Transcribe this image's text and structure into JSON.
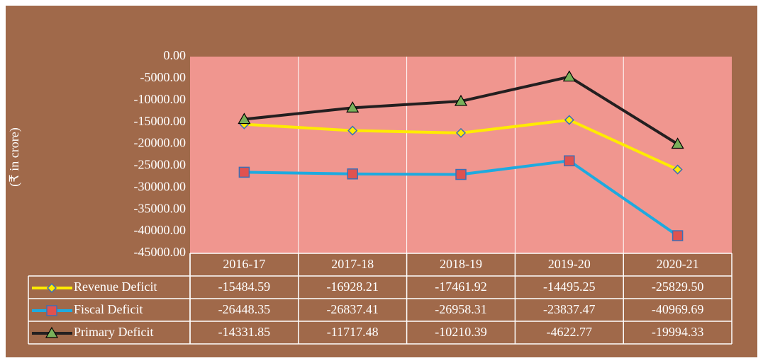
{
  "chart_data": {
    "type": "line",
    "y_label": "(₹ in crore)",
    "categories": [
      "2016-17",
      "2017-18",
      "2018-19",
      "2019-20",
      "2020-21"
    ],
    "series": [
      {
        "name": "Revenue Deficit",
        "color": "#FFEB00",
        "marker": "diamond",
        "marker_color": "#FFEB00",
        "values": [
          -15484.59,
          -16928.21,
          -17461.92,
          -14495.25,
          -25829.5
        ],
        "value_labels": [
          "-15484.59",
          "-16928.21",
          "-17461.92",
          "-14495.25",
          "-25829.50"
        ]
      },
      {
        "name": "Fiscal Deficit",
        "color": "#1EAADF",
        "marker": "square",
        "marker_color": "#E0524F",
        "values": [
          -26448.35,
          -26837.41,
          -26958.31,
          -23837.47,
          -40969.69
        ]
      },
      {
        "name": "Primary Deficit",
        "color": "#231F20",
        "marker": "triangle",
        "marker_color": "#79B05A",
        "values": [
          -14331.85,
          -11717.48,
          -10210.39,
          -4622.77,
          -19994.33
        ]
      }
    ],
    "ylim": [
      -45000,
      0
    ],
    "yticks": [
      {
        "value": 0,
        "label": "0.00"
      },
      {
        "value": -5000,
        "label": "-5000.00"
      },
      {
        "value": -10000,
        "label": "-10000.00"
      },
      {
        "value": -15000,
        "label": "-15000.00"
      },
      {
        "value": -20000,
        "label": "-20000.00"
      },
      {
        "value": -25000,
        "label": "-25000.00"
      },
      {
        "value": -30000,
        "label": "-30000.00"
      },
      {
        "value": -35000,
        "label": "-35000.00"
      },
      {
        "value": -40000,
        "label": "-40000.00"
      },
      {
        "value": -45000,
        "label": "-45000.00"
      }
    ],
    "grid": true,
    "data_table": true
  }
}
